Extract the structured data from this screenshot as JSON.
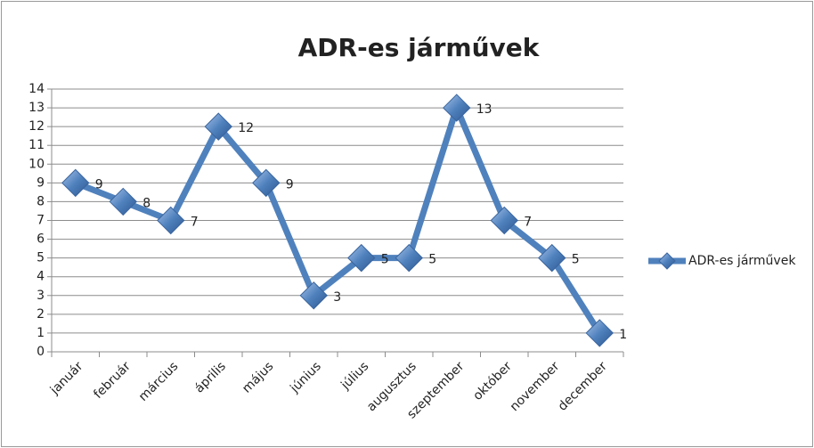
{
  "chart_data": {
    "type": "line",
    "title": "ADR-es járművek",
    "categories": [
      "január",
      "február",
      "március",
      "április",
      "május",
      "június",
      "július",
      "augusztus",
      "szeptember",
      "október",
      "november",
      "december"
    ],
    "series": [
      {
        "name": "ADR-es járművek",
        "color": "#4f81bd",
        "values": [
          9,
          8,
          7,
          12,
          9,
          3,
          5,
          5,
          13,
          7,
          5,
          1
        ]
      }
    ],
    "ylim": [
      0,
      14
    ],
    "yticks": [
      0,
      1,
      2,
      3,
      4,
      5,
      6,
      7,
      8,
      9,
      10,
      11,
      12,
      13,
      14
    ],
    "grid": true,
    "legend": "right"
  }
}
